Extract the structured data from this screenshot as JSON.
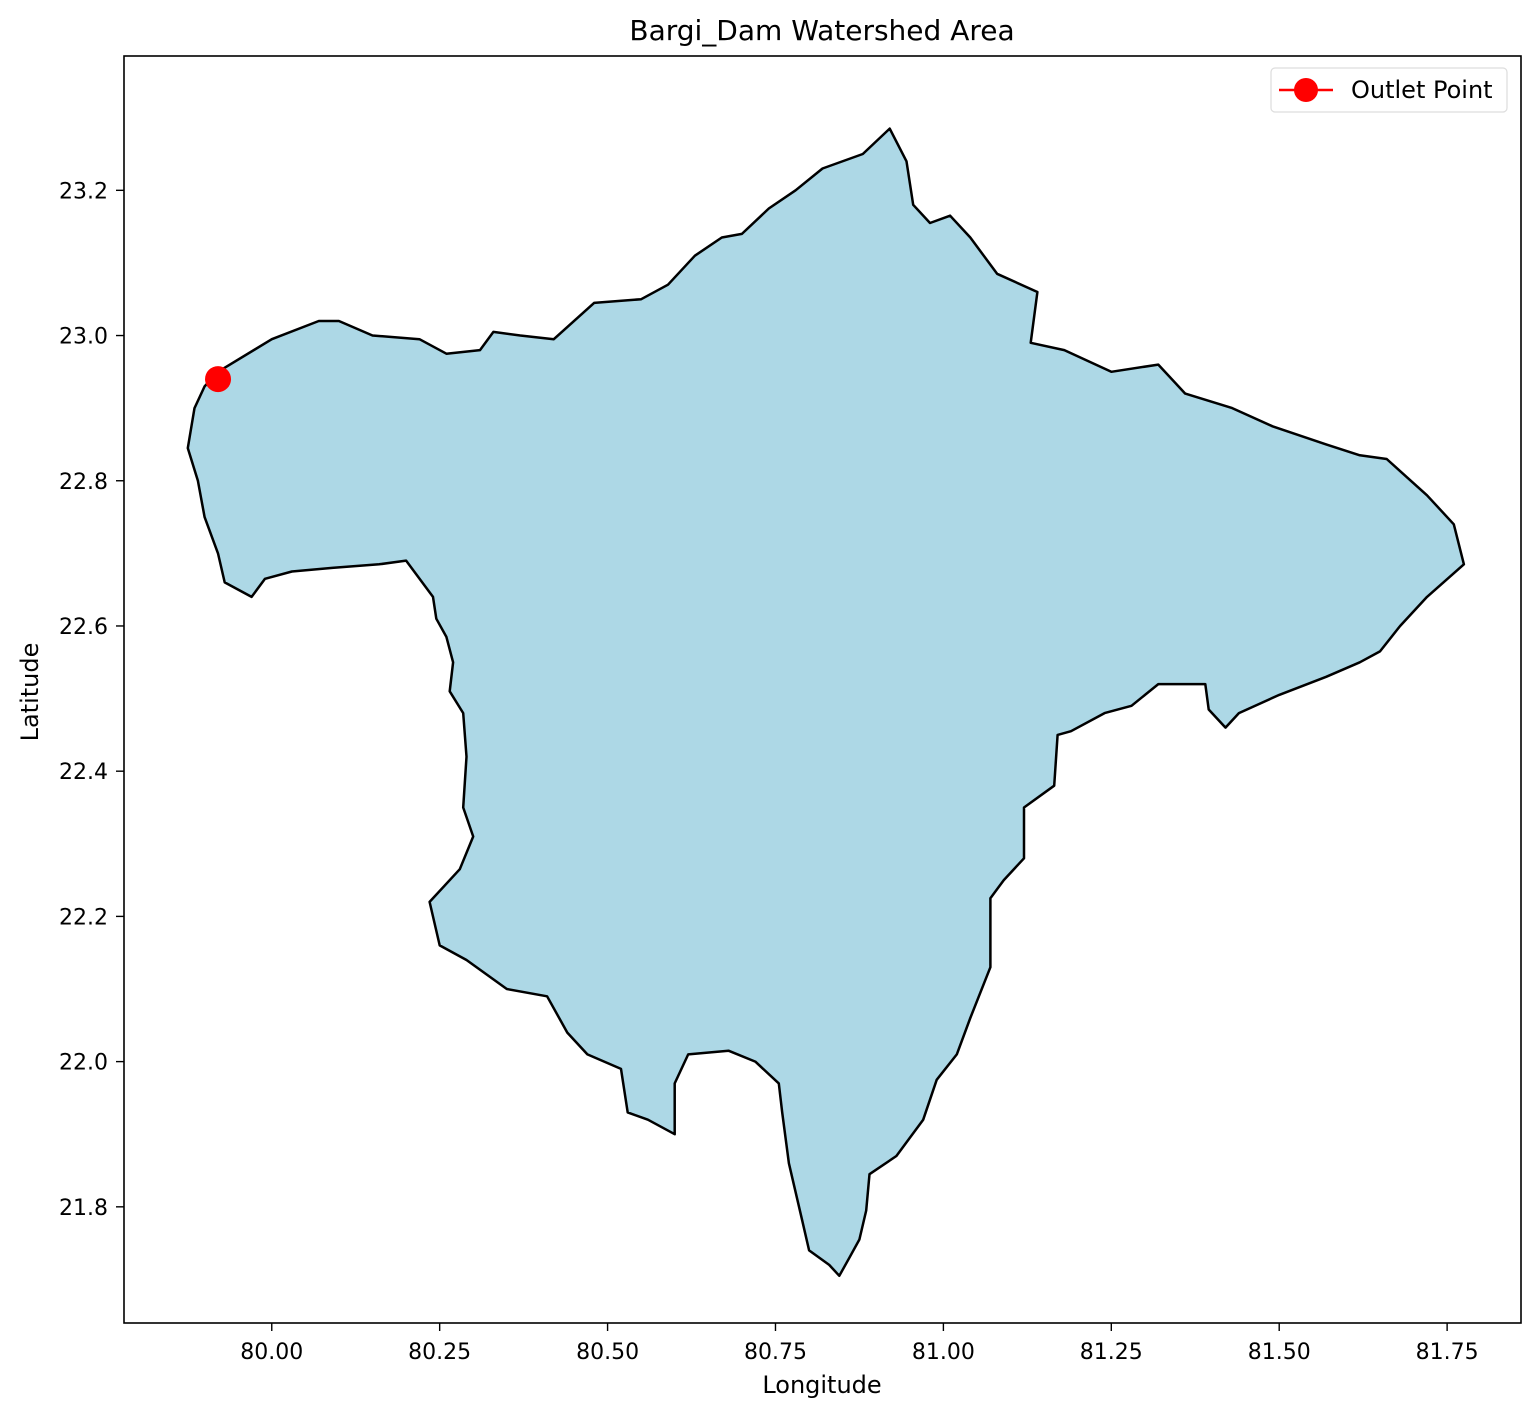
{
  "chart_data": {
    "type": "map",
    "title": "Bargi_Dam Watershed Area",
    "xlabel": "Longitude",
    "ylabel": "Latitude",
    "xlim": [
      79.78,
      81.86
    ],
    "ylim": [
      21.64,
      23.385
    ],
    "xticks": [
      80.0,
      80.25,
      80.5,
      80.75,
      81.0,
      81.25,
      81.5,
      81.75
    ],
    "xtick_labels": [
      "80.00",
      "80.25",
      "80.50",
      "80.75",
      "81.00",
      "81.25",
      "81.50",
      "81.75"
    ],
    "yticks": [
      21.8,
      22.0,
      22.2,
      22.4,
      22.6,
      22.8,
      23.0,
      23.2
    ],
    "ytick_labels": [
      "21.8",
      "22.0",
      "22.2",
      "22.4",
      "22.6",
      "22.8",
      "23.0",
      "23.2"
    ],
    "legend": {
      "position": "top-right",
      "entries": [
        {
          "label": "Outlet Point",
          "color": "#ff0000",
          "marker": "circle"
        }
      ]
    },
    "watershed": {
      "fill": "#add8e6",
      "edge": "#000000",
      "boundary": [
        [
          79.92,
          22.95
        ],
        [
          80.0,
          22.995
        ],
        [
          80.07,
          23.02
        ],
        [
          80.1,
          23.02
        ],
        [
          80.15,
          23.0
        ],
        [
          80.22,
          22.995
        ],
        [
          80.26,
          22.975
        ],
        [
          80.31,
          22.98
        ],
        [
          80.33,
          23.005
        ],
        [
          80.37,
          23.0
        ],
        [
          80.42,
          22.995
        ],
        [
          80.48,
          23.045
        ],
        [
          80.55,
          23.05
        ],
        [
          80.59,
          23.07
        ],
        [
          80.63,
          23.11
        ],
        [
          80.67,
          23.135
        ],
        [
          80.7,
          23.14
        ],
        [
          80.74,
          23.175
        ],
        [
          80.78,
          23.2
        ],
        [
          80.82,
          23.23
        ],
        [
          80.88,
          23.25
        ],
        [
          80.92,
          23.285
        ],
        [
          80.945,
          23.24
        ],
        [
          80.955,
          23.18
        ],
        [
          80.98,
          23.155
        ],
        [
          81.01,
          23.165
        ],
        [
          81.04,
          23.135
        ],
        [
          81.08,
          23.085
        ],
        [
          81.14,
          23.06
        ],
        [
          81.13,
          22.99
        ],
        [
          81.18,
          22.98
        ],
        [
          81.25,
          22.95
        ],
        [
          81.32,
          22.96
        ],
        [
          81.36,
          22.92
        ],
        [
          81.43,
          22.9
        ],
        [
          81.49,
          22.875
        ],
        [
          81.57,
          22.85
        ],
        [
          81.62,
          22.835
        ],
        [
          81.66,
          22.83
        ],
        [
          81.72,
          22.78
        ],
        [
          81.76,
          22.74
        ],
        [
          81.775,
          22.685
        ],
        [
          81.72,
          22.64
        ],
        [
          81.68,
          22.6
        ],
        [
          81.65,
          22.565
        ],
        [
          81.62,
          22.55
        ],
        [
          81.57,
          22.53
        ],
        [
          81.5,
          22.505
        ],
        [
          81.44,
          22.48
        ],
        [
          81.42,
          22.46
        ],
        [
          81.395,
          22.485
        ],
        [
          81.39,
          22.52
        ],
        [
          81.32,
          22.52
        ],
        [
          81.28,
          22.49
        ],
        [
          81.24,
          22.48
        ],
        [
          81.19,
          22.455
        ],
        [
          81.17,
          22.45
        ],
        [
          81.165,
          22.38
        ],
        [
          81.12,
          22.35
        ],
        [
          81.12,
          22.28
        ],
        [
          81.09,
          22.25
        ],
        [
          81.07,
          22.225
        ],
        [
          81.07,
          22.13
        ],
        [
          81.04,
          22.06
        ],
        [
          81.02,
          22.01
        ],
        [
          80.99,
          21.975
        ],
        [
          80.97,
          21.92
        ],
        [
          80.93,
          21.87
        ],
        [
          80.89,
          21.845
        ],
        [
          80.885,
          21.795
        ],
        [
          80.875,
          21.755
        ],
        [
          80.86,
          21.73
        ],
        [
          80.845,
          21.705
        ],
        [
          80.83,
          21.72
        ],
        [
          80.8,
          21.74
        ],
        [
          80.79,
          21.78
        ],
        [
          80.77,
          21.86
        ],
        [
          80.76,
          21.93
        ],
        [
          80.755,
          21.97
        ],
        [
          80.72,
          22.0
        ],
        [
          80.68,
          22.015
        ],
        [
          80.62,
          22.01
        ],
        [
          80.6,
          21.97
        ],
        [
          80.6,
          21.9
        ],
        [
          80.56,
          21.92
        ],
        [
          80.53,
          21.93
        ],
        [
          80.52,
          21.99
        ],
        [
          80.47,
          22.01
        ],
        [
          80.44,
          22.04
        ],
        [
          80.41,
          22.09
        ],
        [
          80.35,
          22.1
        ],
        [
          80.29,
          22.14
        ],
        [
          80.25,
          22.16
        ],
        [
          80.235,
          22.22
        ],
        [
          80.28,
          22.265
        ],
        [
          80.3,
          22.31
        ],
        [
          80.285,
          22.35
        ],
        [
          80.29,
          22.42
        ],
        [
          80.285,
          22.48
        ],
        [
          80.265,
          22.51
        ],
        [
          80.27,
          22.55
        ],
        [
          80.26,
          22.585
        ],
        [
          80.245,
          22.61
        ],
        [
          80.24,
          22.64
        ],
        [
          80.2,
          22.69
        ],
        [
          80.16,
          22.685
        ],
        [
          80.09,
          22.68
        ],
        [
          80.03,
          22.675
        ],
        [
          79.99,
          22.665
        ],
        [
          79.97,
          22.64
        ],
        [
          79.93,
          22.66
        ],
        [
          79.92,
          22.7
        ],
        [
          79.9,
          22.75
        ],
        [
          79.89,
          22.8
        ],
        [
          79.875,
          22.845
        ],
        [
          79.885,
          22.9
        ],
        [
          79.9,
          22.93
        ]
      ]
    },
    "outlet_point": {
      "label": "Outlet Point",
      "x": 79.92,
      "y": 22.94,
      "color": "#ff0000"
    }
  }
}
